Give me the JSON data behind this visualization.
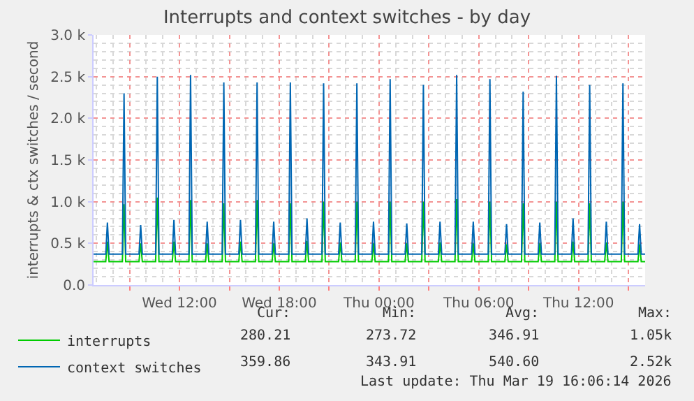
{
  "chart_data": {
    "type": "line",
    "title": "Interrupts and context switches - by day",
    "ylabel": "interrupts & ctx switches / second",
    "x": [
      "2026-03-18T06:50",
      "2026-03-18T07:34",
      "2026-03-18T07:40",
      "2026-03-18T07:46",
      "2026-03-18T08:34",
      "2026-03-18T08:40",
      "2026-03-18T08:46",
      "2026-03-18T09:34",
      "2026-03-18T09:40",
      "2026-03-18T09:46",
      "2026-03-18T10:34",
      "2026-03-18T10:40",
      "2026-03-18T10:46",
      "2026-03-18T11:34",
      "2026-03-18T11:40",
      "2026-03-18T11:46",
      "2026-03-18T12:34",
      "2026-03-18T12:40",
      "2026-03-18T12:46",
      "2026-03-18T13:34",
      "2026-03-18T13:40",
      "2026-03-18T13:46",
      "2026-03-18T14:34",
      "2026-03-18T14:40",
      "2026-03-18T14:46",
      "2026-03-18T15:34",
      "2026-03-18T15:40",
      "2026-03-18T15:46",
      "2026-03-18T16:34",
      "2026-03-18T16:40",
      "2026-03-18T16:46",
      "2026-03-18T17:34",
      "2026-03-18T17:40",
      "2026-03-18T17:46",
      "2026-03-18T18:34",
      "2026-03-18T18:40",
      "2026-03-18T18:46",
      "2026-03-18T19:34",
      "2026-03-18T19:40",
      "2026-03-18T19:46",
      "2026-03-18T20:34",
      "2026-03-18T20:40",
      "2026-03-18T20:46",
      "2026-03-18T21:34",
      "2026-03-18T21:40",
      "2026-03-18T21:46",
      "2026-03-18T22:34",
      "2026-03-18T22:40",
      "2026-03-18T22:46",
      "2026-03-18T23:34",
      "2026-03-18T23:40",
      "2026-03-18T23:46",
      "2026-03-19T00:34",
      "2026-03-19T00:40",
      "2026-03-19T00:46",
      "2026-03-19T01:34",
      "2026-03-19T01:40",
      "2026-03-19T01:46",
      "2026-03-19T02:34",
      "2026-03-19T02:40",
      "2026-03-19T02:46",
      "2026-03-19T03:34",
      "2026-03-19T03:40",
      "2026-03-19T03:46",
      "2026-03-19T04:34",
      "2026-03-19T04:40",
      "2026-03-19T04:46",
      "2026-03-19T05:34",
      "2026-03-19T05:40",
      "2026-03-19T05:46",
      "2026-03-19T06:34",
      "2026-03-19T06:40",
      "2026-03-19T06:46",
      "2026-03-19T07:34",
      "2026-03-19T07:40",
      "2026-03-19T07:46",
      "2026-03-19T08:34",
      "2026-03-19T08:40",
      "2026-03-19T08:46",
      "2026-03-19T09:34",
      "2026-03-19T09:40",
      "2026-03-19T09:46",
      "2026-03-19T10:34",
      "2026-03-19T10:40",
      "2026-03-19T10:46",
      "2026-03-19T11:34",
      "2026-03-19T11:40",
      "2026-03-19T11:46",
      "2026-03-19T12:34",
      "2026-03-19T12:40",
      "2026-03-19T12:46",
      "2026-03-19T13:34",
      "2026-03-19T13:40",
      "2026-03-19T13:46",
      "2026-03-19T14:34",
      "2026-03-19T14:40",
      "2026-03-19T14:46",
      "2026-03-19T15:34",
      "2026-03-19T15:40",
      "2026-03-19T15:46",
      "2026-03-19T16:00"
    ],
    "series": [
      {
        "name": "interrupts",
        "color": "#00cc00",
        "values": [
          280,
          280,
          520,
          280,
          280,
          970,
          280,
          280,
          500,
          280,
          280,
          1050,
          280,
          280,
          520,
          280,
          280,
          1020,
          280,
          280,
          500,
          280,
          280,
          980,
          280,
          280,
          520,
          280,
          280,
          1020,
          280,
          280,
          500,
          280,
          280,
          980,
          280,
          280,
          530,
          280,
          280,
          1000,
          280,
          280,
          510,
          280,
          280,
          1000,
          280,
          280,
          500,
          280,
          280,
          1000,
          280,
          280,
          500,
          280,
          280,
          1000,
          280,
          280,
          510,
          280,
          280,
          1030,
          280,
          280,
          500,
          280,
          280,
          1000,
          280,
          280,
          490,
          280,
          280,
          980,
          280,
          280,
          500,
          280,
          280,
          1000,
          280,
          280,
          520,
          280,
          280,
          980,
          280,
          280,
          510,
          280,
          280,
          1000,
          280,
          280,
          490,
          280,
          280
        ]
      },
      {
        "name": "context switches",
        "color": "#0066b3",
        "values": [
          370,
          370,
          750,
          370,
          370,
          2300,
          370,
          370,
          720,
          370,
          370,
          2500,
          370,
          370,
          780,
          370,
          370,
          2520,
          370,
          370,
          760,
          370,
          370,
          2430,
          370,
          370,
          780,
          370,
          370,
          2430,
          370,
          370,
          760,
          370,
          370,
          2430,
          370,
          370,
          800,
          370,
          370,
          2420,
          370,
          370,
          750,
          370,
          370,
          2420,
          370,
          370,
          760,
          370,
          370,
          2470,
          370,
          370,
          740,
          370,
          370,
          2400,
          370,
          370,
          760,
          370,
          370,
          2520,
          370,
          370,
          760,
          370,
          370,
          2470,
          370,
          370,
          730,
          370,
          370,
          2320,
          370,
          370,
          750,
          370,
          370,
          2510,
          370,
          370,
          800,
          370,
          370,
          2400,
          370,
          370,
          760,
          370,
          370,
          2420,
          370,
          370,
          730,
          370,
          370
        ]
      }
    ],
    "xlim": [
      "2026-03-18T06:50",
      "2026-03-19T16:00"
    ],
    "xticks": [
      {
        "value": "2026-03-18T09:00",
        "label": null
      },
      {
        "value": "2026-03-18T12:00",
        "label": "Wed 12:00"
      },
      {
        "value": "2026-03-18T15:00",
        "label": null
      },
      {
        "value": "2026-03-18T18:00",
        "label": "Wed 18:00"
      },
      {
        "value": "2026-03-18T21:00",
        "label": null
      },
      {
        "value": "2026-03-19T00:00",
        "label": "Thu 00:00"
      },
      {
        "value": "2026-03-19T03:00",
        "label": null
      },
      {
        "value": "2026-03-19T06:00",
        "label": "Thu 06:00"
      },
      {
        "value": "2026-03-19T09:00",
        "label": null
      },
      {
        "value": "2026-03-19T12:00",
        "label": "Thu 12:00"
      },
      {
        "value": "2026-03-19T15:00",
        "label": null
      }
    ],
    "ylim": [
      0,
      3000
    ],
    "yticks": [
      {
        "value": 0,
        "label": "0.0"
      },
      {
        "value": 500,
        "label": "0.5 k"
      },
      {
        "value": 1000,
        "label": "1.0 k"
      },
      {
        "value": 1500,
        "label": "1.5 k"
      },
      {
        "value": 2000,
        "label": "2.0 k"
      },
      {
        "value": 2500,
        "label": "2.5 k"
      },
      {
        "value": 3000,
        "label": "3.0 k"
      }
    ],
    "grid": true,
    "legend": "bottom left",
    "marker": "none",
    "line_style": "solid",
    "annotations": [
      "Cur:",
      "Min:",
      "Avg:",
      "Max:",
      "280.21",
      "273.72",
      "346.91",
      "1.05k",
      "359.86",
      "343.91",
      "540.60",
      "2.52k",
      "Last update: Thu Mar 19 16:06:14 2026"
    ]
  }
}
